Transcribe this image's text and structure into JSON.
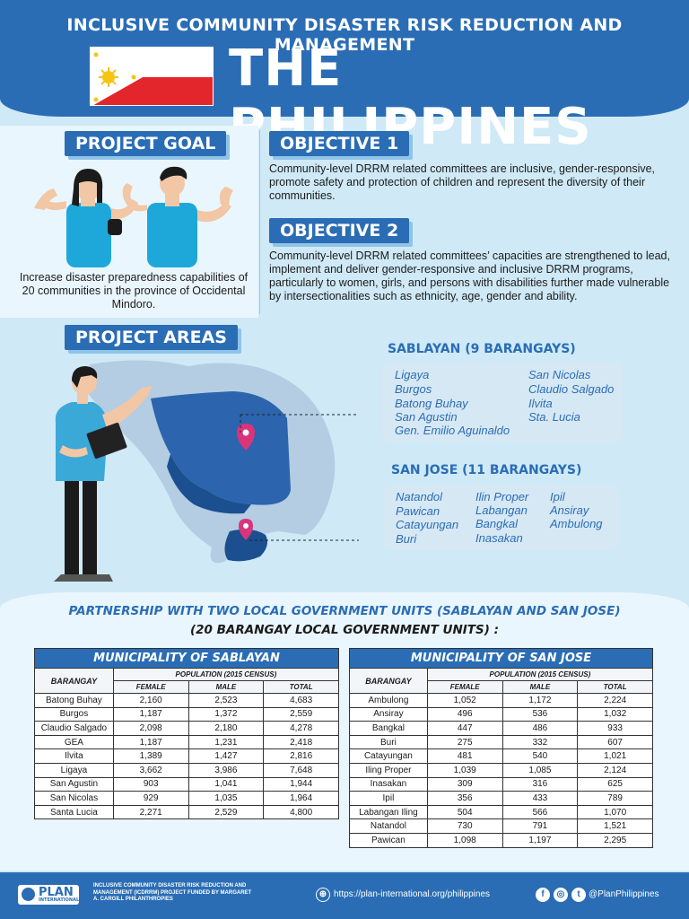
{
  "header": {
    "subtitle": "INCLUSIVE COMMUNITY DISASTER RISK REDUCTION AND MANAGEMENT",
    "title": "THE PHILIPPINES"
  },
  "goal": {
    "label": "PROJECT GOAL",
    "text": "Increase disaster preparedness capabilities of 20 communities in the province of Occidental Mindoro."
  },
  "objectives": [
    {
      "label": "OBJECTIVE 1",
      "text": "Community-level DRRM related committees are inclusive, gender-responsive, promote safety and protection of children and represent the diversity of their communities."
    },
    {
      "label": "OBJECTIVE 2",
      "text": "Community-level DRRM related committees’ capacities are strengthened to lead, implement and deliver gender-responsive and inclusive DRRM programs, particularly to women, girls, and persons with disabilities further made vulnerable by intersectionalities such as ethnicity, age, gender and ability."
    }
  ],
  "areas": {
    "label": "PROJECT AREAS",
    "sablayan": {
      "heading": "SABLAYAN (9 BARANGAYS)",
      "col1": [
        "Ligaya",
        "Burgos",
        "Batong Buhay",
        "San Agustin",
        "Gen. Emilio Aguinaldo"
      ],
      "col2": [
        "San Nicolas",
        "Claudio Salgado",
        "Ilvita",
        "Sta. Lucia"
      ]
    },
    "sanjose": {
      "heading": "SAN JOSE (11 BARANGAYS)",
      "col1": [
        "Natandol",
        "Pawican",
        "Catayungan",
        "Buri"
      ],
      "col2": [
        "Ilin Proper",
        "Labangan",
        "Bangkal",
        "Inasakan"
      ],
      "col3": [
        "Ipil",
        "Ansiray",
        "Ambulong"
      ]
    }
  },
  "partnership": {
    "line1": "PARTNERSHIP WITH TWO LOCAL GOVERNMENT UNITS (SABLAYAN AND SAN JOSE)",
    "line2": "(20 BARANGAY LOCAL GOVERNMENT UNITS) :"
  },
  "tables": {
    "sablayan": {
      "title": "MUNICIPALITY OF SABLAYAN",
      "barangay_header": "BARANGAY",
      "population_header": "POPULATION (2015 CENSUS)",
      "col_female": "FEMALE",
      "col_male": "MALE",
      "col_total": "TOTAL",
      "rows": [
        [
          "Batong Buhay",
          "2,160",
          "2,523",
          "4,683"
        ],
        [
          "Burgos",
          "1,187",
          "1,372",
          "2,559"
        ],
        [
          "Claudio Salgado",
          "2,098",
          "2,180",
          "4,278"
        ],
        [
          "GEA",
          "1,187",
          "1,231",
          "2,418"
        ],
        [
          "Ilvita",
          "1,389",
          "1,427",
          "2,816"
        ],
        [
          "Ligaya",
          "3,662",
          "3,986",
          "7,648"
        ],
        [
          "San Agustin",
          "903",
          "1,041",
          "1,944"
        ],
        [
          "San Nicolas",
          "929",
          "1,035",
          "1,964"
        ],
        [
          "Santa Lucia",
          "2,271",
          "2,529",
          "4,800"
        ]
      ]
    },
    "sanjose": {
      "title": "MUNICIPALITY OF SAN JOSE",
      "barangay_header": "BARANGAY",
      "population_header": "POPULATION (2015 CENSUS)",
      "col_female": "FEMALE",
      "col_male": "MALE",
      "col_total": "TOTAL",
      "rows": [
        [
          "Ambulong",
          "1,052",
          "1,172",
          "2,224"
        ],
        [
          "Ansiray",
          "496",
          "536",
          "1,032"
        ],
        [
          "Bangkal",
          "447",
          "486",
          "933"
        ],
        [
          "Buri",
          "275",
          "332",
          "607"
        ],
        [
          "Catayungan",
          "481",
          "540",
          "1,021"
        ],
        [
          "Iling Proper",
          "1,039",
          "1,085",
          "2,124"
        ],
        [
          "Inasakan",
          "309",
          "316",
          "625"
        ],
        [
          "Ipil",
          "356",
          "433",
          "789"
        ],
        [
          "Labangan Iling",
          "504",
          "566",
          "1,070"
        ],
        [
          "Natandol",
          "730",
          "791",
          "1,521"
        ],
        [
          "Pawican",
          "1,098",
          "1,197",
          "2,295"
        ]
      ]
    }
  },
  "footer": {
    "logo_text": "PLAN",
    "logo_sub": "INTERNATIONAL",
    "credit": "INCLUSIVE COMMUNITY DISASTER RISK REDUCTION AND MANAGEMENT (ICDRRM) PROJECT FUNDED BY MARGARET A. CARGILL PHILANTHROPIES",
    "website": "https://plan-international.org/philippines",
    "handle": "@PlanPhilippines"
  },
  "colors": {
    "brand_blue": "#2a6db5",
    "light_bg": "#cfe9f6",
    "panel_bg": "#eaf6fd",
    "pin": "#d8357a"
  }
}
